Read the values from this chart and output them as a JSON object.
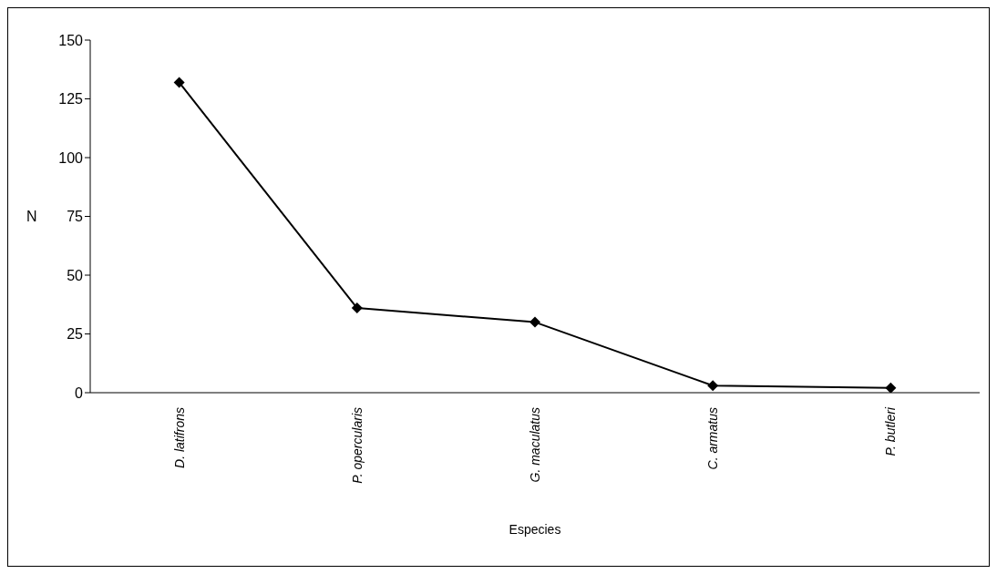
{
  "chart_data": {
    "type": "line",
    "xlabel": "Especies",
    "ylabel": "N",
    "categories": [
      "D. latifrons",
      "P. opercularis",
      "G. maculatus",
      "C. armatus",
      "P. butleri"
    ],
    "series": [
      {
        "color": "#000000",
        "values": [
          132,
          36,
          30,
          3,
          2
        ]
      }
    ],
    "ylim": [
      0,
      150
    ],
    "yticks": [
      0,
      25,
      50,
      75,
      100,
      125,
      150
    ],
    "marker": "diamond",
    "line_style": "solid"
  }
}
